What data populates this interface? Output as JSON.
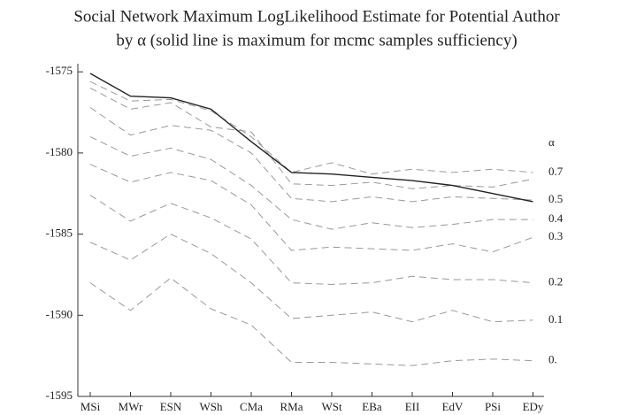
{
  "chart_data": {
    "type": "line",
    "title": "Social Network Maximum LogLikelihood Estimate for Potential Author",
    "subtitle": "by α (solid line is maximum for mcmc samples sufficiency)",
    "legend_title": "α",
    "categories": [
      "MSi",
      "MWr",
      "ESN",
      "WSh",
      "CMa",
      "RMa",
      "WSt",
      "EBa",
      "EII",
      "EdV",
      "PSi",
      "EDy"
    ],
    "ylim": [
      -1595,
      -1574.5
    ],
    "yticks": [
      -1575,
      -1580,
      -1585,
      -1590,
      -1595
    ],
    "series": [
      {
        "name": "0.",
        "color": "#999999",
        "style": "dashed",
        "values": [
          -1588.0,
          -1589.7,
          -1587.7,
          -1589.6,
          -1590.6,
          -1592.9,
          -1592.9,
          -1593.0,
          -1593.1,
          -1592.8,
          -1592.7,
          -1592.8
        ]
      },
      {
        "name": "0.1",
        "color": "#999999",
        "style": "dashed",
        "values": [
          -1585.5,
          -1586.6,
          -1585.0,
          -1586.2,
          -1588.0,
          -1590.2,
          -1590.0,
          -1589.8,
          -1590.4,
          -1589.7,
          -1590.4,
          -1590.3
        ]
      },
      {
        "name": "0.2",
        "color": "#999999",
        "style": "dashed",
        "values": [
          -1582.6,
          -1584.2,
          -1583.1,
          -1584.0,
          -1585.3,
          -1588.0,
          -1588.1,
          -1588.0,
          -1587.6,
          -1587.8,
          -1587.8,
          -1588.0
        ]
      },
      {
        "name": "0.3",
        "color": "#999999",
        "style": "dashed",
        "values": [
          -1580.7,
          -1581.8,
          -1581.2,
          -1581.7,
          -1583.2,
          -1586.0,
          -1585.8,
          -1585.9,
          -1586.0,
          -1585.6,
          -1586.1,
          -1585.2
        ]
      },
      {
        "name": "0.4",
        "color": "#999999",
        "style": "dashed",
        "values": [
          -1579.0,
          -1580.2,
          -1579.7,
          -1580.4,
          -1582.0,
          -1584.1,
          -1584.7,
          -1584.3,
          -1584.6,
          -1584.4,
          -1584.1,
          -1584.1
        ]
      },
      {
        "name": "0.5",
        "color": "#999999",
        "style": "dashed",
        "values": [
          -1577.2,
          -1578.9,
          -1578.3,
          -1578.6,
          -1580.0,
          -1582.8,
          -1583.0,
          -1582.7,
          -1583.0,
          -1582.7,
          -1582.8,
          -1582.9
        ]
      },
      {
        "color": "#999999",
        "style": "dashed",
        "values": [
          -1576.0,
          -1577.3,
          -1576.9,
          -1578.4,
          -1578.7,
          -1581.9,
          -1582.0,
          -1581.8,
          -1582.2,
          -1582.0,
          -1582.1,
          -1581.6
        ]
      },
      {
        "name": "0.7",
        "color": "#999999",
        "style": "dashed",
        "values": [
          -1575.6,
          -1576.8,
          -1576.7,
          -1577.4,
          -1579.0,
          -1581.2,
          -1580.6,
          -1581.3,
          -1581.0,
          -1581.2,
          -1581.0,
          -1581.2
        ]
      },
      {
        "color": "#222222",
        "style": "solid",
        "values": [
          -1575.1,
          -1576.5,
          -1576.6,
          -1577.3,
          -1579.3,
          -1581.2,
          -1581.3,
          -1581.5,
          -1581.7,
          -1582.0,
          -1582.5,
          -1583.0
        ]
      }
    ]
  }
}
